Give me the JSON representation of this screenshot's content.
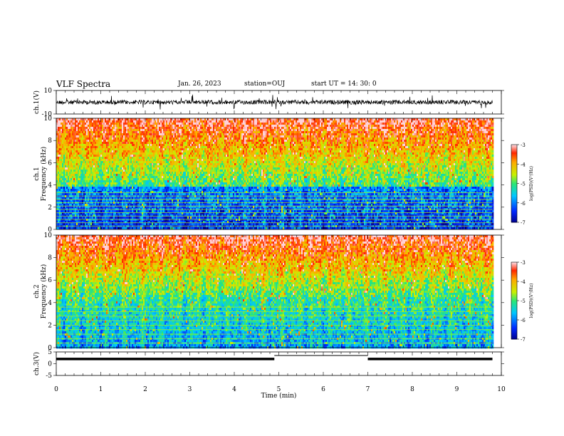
{
  "header": {
    "title": "VLF Spectra",
    "date": "Jan. 26, 2023",
    "station": "station=OUJ",
    "start": "start  UT  =   14: 30: 0"
  },
  "chart_data": [
    {
      "type": "line",
      "panel": "ch1-waveform",
      "ylabel": "ch.1(V)",
      "ylim": [
        -10,
        10
      ],
      "yticks": [
        "10",
        "-10"
      ],
      "xlim": [
        0,
        10
      ],
      "baseline": 0,
      "color": "#000000"
    },
    {
      "type": "heatmap",
      "panel": "ch1-spectrogram",
      "ylabel": [
        "ch.1",
        "Frequency (kHz)"
      ],
      "ylim": [
        0,
        10
      ],
      "yticks": [
        "0",
        "2",
        "4",
        "6",
        "8",
        "10"
      ],
      "xlim": [
        0,
        9.8
      ],
      "colorbar": {
        "label": "log(PSD)(V²/Hz)",
        "min": -7,
        "max": -3,
        "ticks": [
          "-3",
          "-4",
          "-5",
          "-6",
          "-7"
        ]
      },
      "noise_floor_khz": 4,
      "line_khz": [
        0.3,
        0.6,
        0.9,
        1.2,
        1.5,
        1.8,
        2.1,
        2.4,
        2.7,
        3.0,
        3.3
      ]
    },
    {
      "type": "heatmap",
      "panel": "ch2-spectrogram",
      "ylabel": [
        "ch.2",
        "Frequency (kHz)"
      ],
      "ylim": [
        0,
        10
      ],
      "yticks": [
        "0",
        "2",
        "4",
        "6",
        "8",
        "10"
      ],
      "xlim": [
        0,
        9.8
      ],
      "colorbar": {
        "label": "log(PSD)(V²/Hz)",
        "min": -7,
        "max": -3,
        "ticks": [
          "-3",
          "-4",
          "-5",
          "-6",
          "-7"
        ]
      },
      "noise_floor_khz": 4.5,
      "line_khz": [
        0.4,
        0.8,
        1.2,
        1.6,
        2.0,
        2.4,
        2.8,
        3.2,
        3.6
      ]
    },
    {
      "type": "line",
      "panel": "ch3-status",
      "ylabel": "ch.3(V)",
      "ylim": [
        -5,
        5
      ],
      "yticks": [
        "5",
        "0",
        "-5"
      ],
      "xlim": [
        0,
        10
      ],
      "xlabel": "Time (min)",
      "xticks": [
        "0",
        "1",
        "2",
        "3",
        "4",
        "5",
        "6",
        "7",
        "8",
        "9",
        "10"
      ],
      "segments": [
        {
          "x0": 0,
          "x1": 4.9,
          "y": 2.0
        },
        {
          "x0": 4.9,
          "x1": 7.0,
          "y": 3.5
        },
        {
          "x0": 7.0,
          "x1": 9.8,
          "y": 2.0
        }
      ]
    }
  ]
}
